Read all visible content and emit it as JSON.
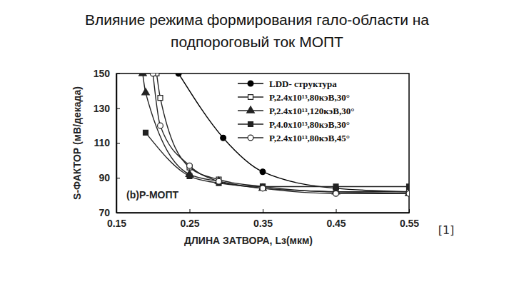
{
  "chart_data": {
    "type": "line",
    "title": [
      "Влияние режима формирования гало-области на",
      "подпороговый ток МОПТ"
    ],
    "x_label": "ДЛИНА ЗАТВОРА, Lз(мкм)",
    "y_label": "S-ФАКТОР (мВ/декада)",
    "annotations": [
      "(b)P-МОПТ",
      "[1]"
    ],
    "xlim": [
      0.15,
      0.55
    ],
    "xticks": [
      0.15,
      0.25,
      0.35,
      0.45,
      0.55
    ],
    "ylim": [
      70,
      150
    ],
    "yticks": [
      70,
      90,
      110,
      130,
      150
    ],
    "grid": false,
    "legend": "upper right",
    "series": [
      {
        "name": "LDD- структура",
        "color": "#000000",
        "marker": "circle",
        "line_style": "solid",
        "x": [
          0.235,
          0.296,
          0.35,
          0.45,
          0.55
        ],
        "values": [
          150,
          113,
          93.5,
          84,
          82
        ]
      },
      {
        "name": "P,2.4x10¹³,80кэВ,30°",
        "color": "#222222",
        "marker": "square-open",
        "line_style": "solid",
        "x": [
          0.205,
          0.21,
          0.25,
          0.29,
          0.35,
          0.45,
          0.55
        ],
        "values": [
          150,
          136,
          96,
          89,
          85,
          82,
          82
        ]
      },
      {
        "name": "P,2.4x10¹³,120кэВ,30°",
        "color": "#222222",
        "marker": "triangle",
        "line_style": "solid",
        "x": [
          0.186,
          0.19,
          0.25,
          0.29,
          0.35,
          0.45,
          0.55
        ],
        "values": [
          150,
          139,
          92,
          88,
          84,
          82,
          81
        ]
      },
      {
        "name": "P,4.0x10¹³,80кэВ,30°",
        "color": "#222222",
        "marker": "square",
        "line_style": "solid",
        "x": [
          0.19,
          0.25,
          0.29,
          0.35,
          0.45,
          0.55
        ],
        "values": [
          116,
          91,
          87,
          85,
          85,
          85
        ]
      },
      {
        "name": "P,2.4x10¹³,80кэВ,45°",
        "color": "#222222",
        "marker": "circle-open",
        "line_style": "solid",
        "x": [
          0.2,
          0.21,
          0.25,
          0.29,
          0.35,
          0.45,
          0.55
        ],
        "values": [
          150,
          120,
          97,
          88,
          84,
          81,
          81
        ]
      }
    ]
  }
}
